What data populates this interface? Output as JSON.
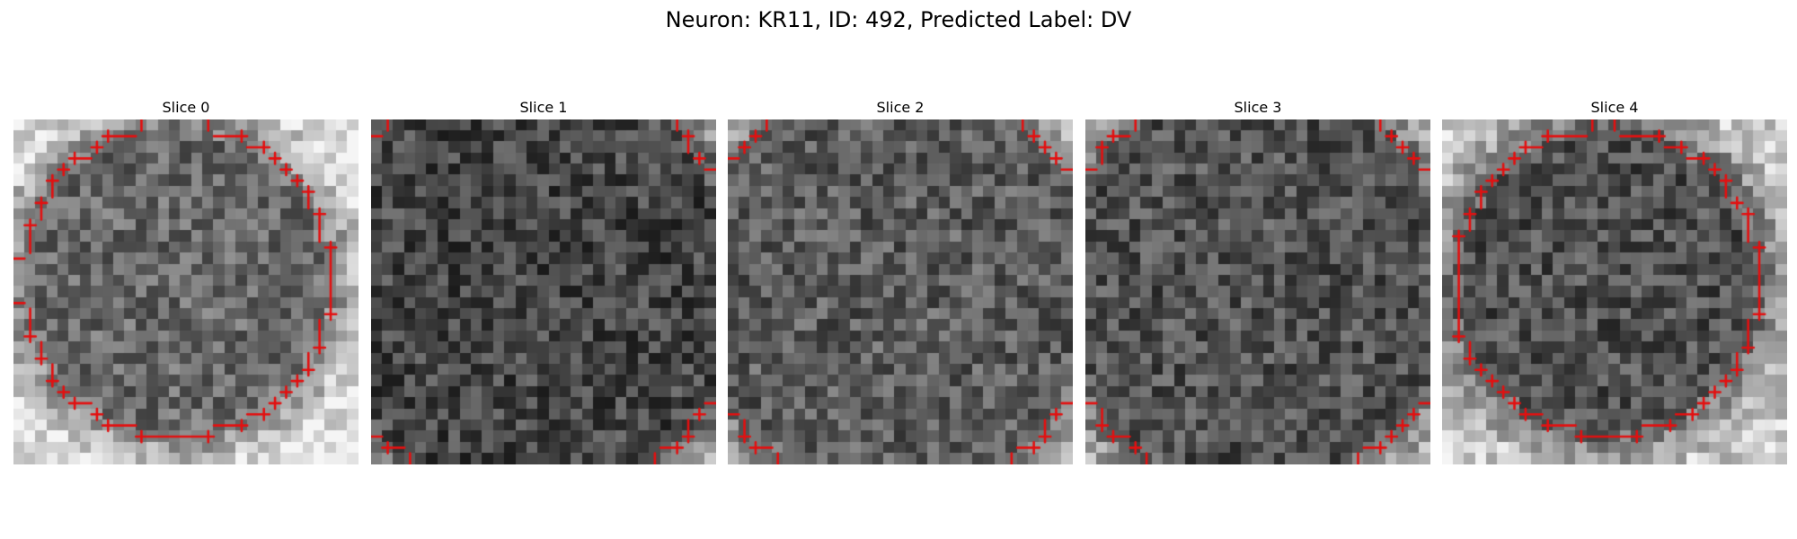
{
  "figure": {
    "title": "Neuron: KR11, ID: 492, Predicted Label: DV"
  },
  "slices": [
    {
      "label": "Slice 0",
      "rim": "full"
    },
    {
      "label": "Slice 1",
      "rim": "partial"
    },
    {
      "label": "Slice 2",
      "rim": "partial"
    },
    {
      "label": "Slice 3",
      "rim": "partial"
    },
    {
      "label": "Slice 4",
      "rim": "full"
    }
  ],
  "colors": {
    "contour": "#e31010",
    "background": "#ffffff"
  }
}
